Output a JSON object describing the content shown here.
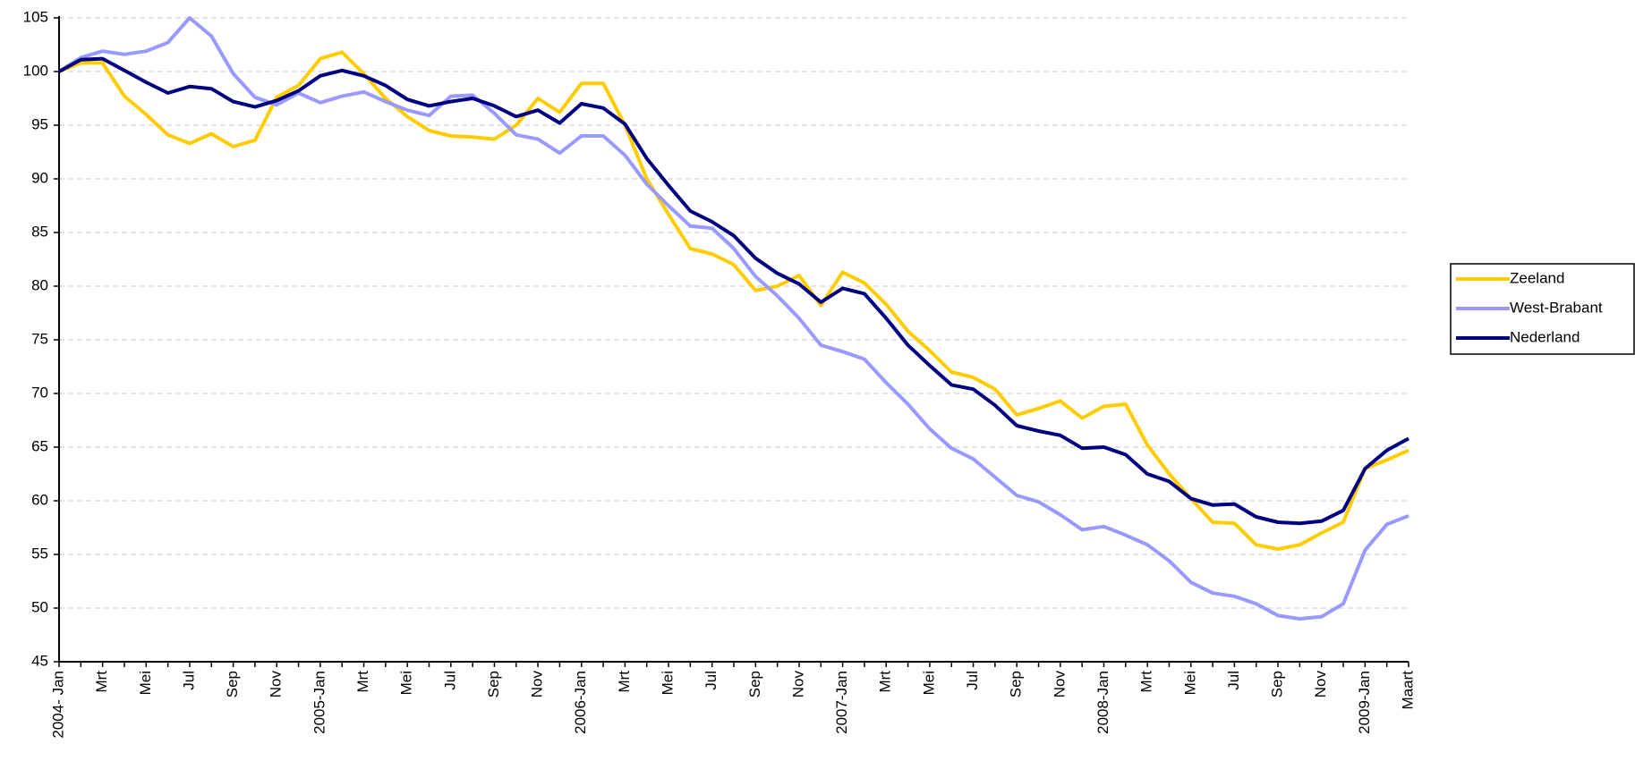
{
  "chart_data": {
    "type": "line",
    "categories": [
      "2004- Jan",
      null,
      "Mrt",
      null,
      "Mei",
      null,
      "Jul",
      null,
      "Sep",
      null,
      "Nov",
      null,
      "2005-Jan",
      null,
      "Mrt",
      null,
      "Mei",
      null,
      "Jul",
      null,
      "Sep",
      null,
      "Nov",
      null,
      "2006-Jan",
      null,
      "Mrt",
      null,
      "Mei",
      null,
      "Jul",
      null,
      "Sep",
      null,
      "Nov",
      null,
      "2007-Jan",
      null,
      "Mrt",
      null,
      "Mei",
      null,
      "Jul",
      null,
      "Sep",
      null,
      "Nov",
      null,
      "2008-Jan",
      null,
      "Mrt",
      null,
      "Mei",
      null,
      "Jul",
      null,
      "Sep",
      null,
      "Nov",
      null,
      "2009-Jan",
      null,
      "Maart"
    ],
    "series": [
      {
        "name": "Zeeland",
        "color": "#ffcc00",
        "values": [
          100,
          100.8,
          100.8,
          97.7,
          96,
          94.1,
          93.3,
          94.2,
          93,
          93.6,
          97.6,
          98.7,
          101.2,
          101.8,
          99.8,
          97.5,
          95.8,
          94.5,
          94,
          93.9,
          93.7,
          95,
          97.5,
          96.2,
          98.9,
          98.9,
          95,
          90,
          86.7,
          83.5,
          83,
          82,
          79.6,
          80,
          81,
          78.2,
          81.3,
          80.3,
          78.3,
          75.8,
          74,
          72,
          71.5,
          70.4,
          68,
          68.6,
          69.3,
          67.7,
          68.8,
          69,
          65.2,
          62.5,
          60.2,
          58,
          57.9,
          55.9,
          55.5,
          55.9,
          57,
          58,
          63,
          63.8,
          64.7
        ]
      },
      {
        "name": "West-Brabant",
        "color": "#9999ff",
        "values": [
          100,
          101.3,
          101.9,
          101.6,
          101.9,
          102.7,
          105,
          103.3,
          99.8,
          97.6,
          96.9,
          98,
          97.1,
          97.7,
          98.1,
          97.2,
          96.4,
          95.9,
          97.7,
          97.8,
          96.1,
          94.1,
          93.7,
          92.4,
          94,
          94,
          92.2,
          89.5,
          87.5,
          85.6,
          85.4,
          83.5,
          80.9,
          79.1,
          77,
          74.5,
          73.9,
          73.2,
          71,
          69,
          66.7,
          64.9,
          63.9,
          62.2,
          60.5,
          59.9,
          58.7,
          57.3,
          57.6,
          56.8,
          55.9,
          54.4,
          52.4,
          51.4,
          51.1,
          50.4,
          49.3,
          49,
          49.2,
          50.4,
          55.4,
          57.8,
          58.6
        ]
      },
      {
        "name": "Nederland",
        "color": "#000080",
        "values": [
          100,
          101.1,
          101.2,
          100.1,
          99,
          98,
          98.6,
          98.4,
          97.2,
          96.7,
          97.3,
          98.2,
          99.6,
          100.1,
          99.6,
          98.7,
          97.4,
          96.8,
          97.2,
          97.5,
          96.8,
          95.8,
          96.4,
          95.2,
          97,
          96.6,
          95.1,
          91.9,
          89.4,
          87,
          86,
          84.7,
          82.6,
          81.2,
          80.2,
          78.5,
          79.8,
          79.3,
          77,
          74.5,
          72.6,
          70.8,
          70.4,
          68.9,
          67,
          66.5,
          66.1,
          64.9,
          65,
          64.3,
          62.5,
          61.8,
          60.2,
          59.6,
          59.7,
          58.5,
          58,
          57.9,
          58.1,
          59.1,
          63,
          64.7,
          65.8
        ]
      }
    ],
    "ylim": [
      45,
      105
    ],
    "yticks": [
      45,
      50,
      55,
      60,
      65,
      70,
      75,
      80,
      85,
      90,
      95,
      100,
      105
    ],
    "grid": true,
    "legend": "right"
  }
}
